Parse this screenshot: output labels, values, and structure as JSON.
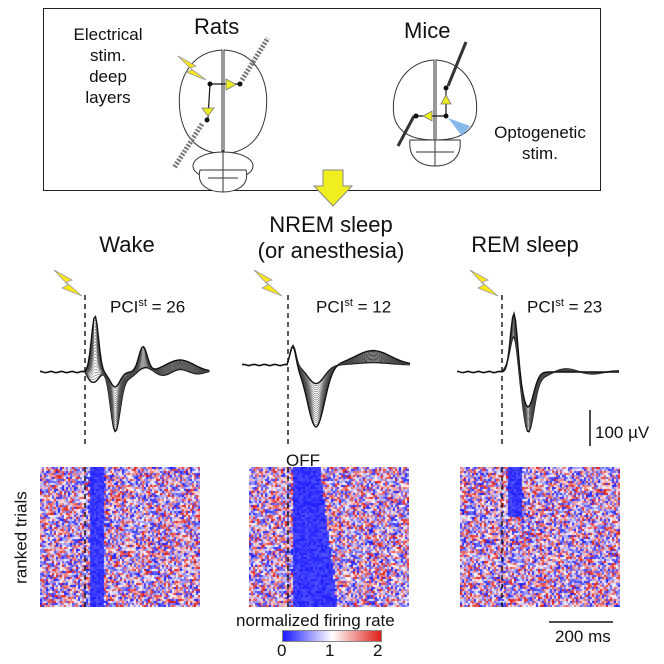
{
  "top_panel": {
    "rats_title": "Rats",
    "mice_title": "Mice",
    "electrical_label": [
      "Electrical",
      "stim.",
      "deep",
      "layers"
    ],
    "optogenetic_label": [
      "Optogenetic",
      "stim."
    ]
  },
  "conditions": [
    {
      "title": [
        "Wake"
      ],
      "pci_prefix": "PCI",
      "pci_sup": "st",
      "pci_value": "= 26"
    },
    {
      "title": [
        "NREM sleep",
        "(or anesthesia)"
      ],
      "pci_prefix": "PCI",
      "pci_sup": "st",
      "pci_value": "= 12",
      "off_label": "OFF"
    },
    {
      "title": [
        "REM sleep"
      ],
      "pci_prefix": "PCI",
      "pci_sup": "st",
      "pci_value": "= 23"
    }
  ],
  "scalebars": {
    "voltage": "100 µV",
    "time": "200 ms"
  },
  "raster": {
    "ylabel": "ranked trials",
    "colorbar_label": "normalized firing rate",
    "colorbar_ticks": [
      "0",
      "1",
      "2"
    ],
    "colors": {
      "low": "#1a1aff",
      "mid": "#ffffff",
      "high": "#e0201a"
    }
  },
  "colors": {
    "bolt": "#ffe81a",
    "arrow": "#e6e61a",
    "optical": "#6aa8e6"
  }
}
